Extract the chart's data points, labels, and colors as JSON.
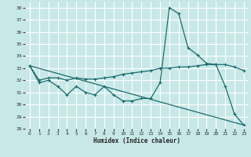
{
  "xlabel": "Humidex (Indice chaleur)",
  "background_color": "#c8e8e8",
  "grid_color": "#ffffff",
  "line_color": "#1a6b6b",
  "xlim": [
    -0.5,
    23.5
  ],
  "ylim": [
    28,
    38.5
  ],
  "yticks": [
    28,
    29,
    30,
    31,
    32,
    33,
    34,
    35,
    36,
    37,
    38
  ],
  "xticks": [
    0,
    1,
    2,
    3,
    4,
    5,
    6,
    7,
    8,
    9,
    10,
    11,
    12,
    13,
    14,
    15,
    16,
    17,
    18,
    19,
    20,
    21,
    22,
    23
  ],
  "line1_x": [
    0,
    1,
    2,
    3,
    4,
    5,
    6,
    7,
    8,
    9,
    10,
    11,
    12,
    13,
    14,
    15,
    16,
    17,
    18,
    19,
    20,
    21,
    22,
    23
  ],
  "line1_y": [
    33.2,
    31.8,
    32.0,
    31.5,
    30.8,
    31.5,
    31.0,
    30.8,
    31.5,
    30.8,
    30.3,
    30.3,
    30.5,
    30.5,
    31.8,
    38.0,
    37.5,
    34.7,
    34.1,
    33.4,
    33.3,
    31.5,
    29.2,
    28.3
  ],
  "line2_x": [
    0,
    1,
    2,
    3,
    4,
    5,
    6,
    7,
    8,
    9,
    10,
    11,
    12,
    13,
    14,
    15,
    16,
    17,
    18,
    19,
    20,
    21,
    22,
    23
  ],
  "line2_y": [
    33.2,
    32.0,
    32.2,
    32.2,
    32.0,
    32.2,
    32.1,
    32.1,
    32.2,
    32.3,
    32.5,
    32.6,
    32.7,
    32.8,
    33.0,
    33.0,
    33.1,
    33.1,
    33.2,
    33.3,
    33.3,
    33.3,
    33.1,
    32.8
  ],
  "line3_fit_x": [
    0,
    23
  ],
  "line3_fit_y": [
    33.2,
    28.3
  ]
}
